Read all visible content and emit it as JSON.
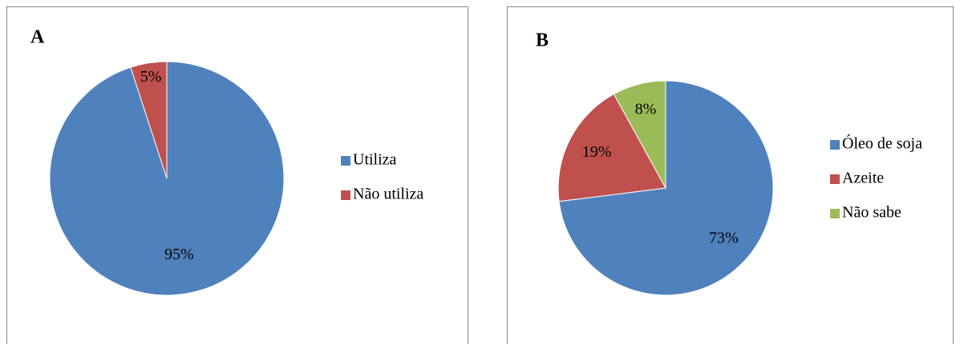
{
  "chart_data": [
    {
      "type": "pie",
      "title": "A",
      "categories": [
        "Utiliza",
        "Não utiliza"
      ],
      "values": [
        95,
        5
      ],
      "value_labels": [
        "95%",
        "5%"
      ],
      "colors": [
        "#4f81bd",
        "#c0504d"
      ],
      "legend": "right"
    },
    {
      "type": "pie",
      "title": "B",
      "categories": [
        "Óleo de soja",
        "Azeite",
        "Não sabe"
      ],
      "values": [
        73,
        19,
        8
      ],
      "value_labels": [
        "73%",
        "19%",
        "8%"
      ],
      "colors": [
        "#4f81bd",
        "#c0504d",
        "#9bbb59"
      ],
      "legend": "right"
    }
  ]
}
